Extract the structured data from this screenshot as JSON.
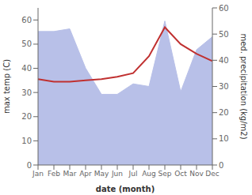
{
  "chart_data": {
    "type": "line",
    "categories": [
      "Jan",
      "Feb",
      "Mar",
      "Apr",
      "May",
      "Jun",
      "Jul",
      "Aug",
      "Sep",
      "Oct",
      "Nov",
      "Dec"
    ],
    "series": [
      {
        "type": "area",
        "axis": "y2",
        "color": "#b8c0e8",
        "values": [
          51,
          51,
          52,
          37,
          27,
          27,
          31,
          30,
          55,
          28,
          44,
          49
        ]
      },
      {
        "type": "line",
        "axis": "y",
        "color": "#c03030",
        "values": [
          35.5,
          34.5,
          34.5,
          35.0,
          35.5,
          36.5,
          38.0,
          45.0,
          57.0,
          50.0,
          46.0,
          43.0
        ]
      }
    ],
    "xlabel": "date (month)",
    "ylabel": "max temp (C)",
    "y2label": "med. precipitation (kg/m2)",
    "ylim": [
      0,
      65
    ],
    "yticks": [
      0,
      10,
      20,
      30,
      40,
      50,
      60
    ],
    "y2lim": [
      0,
      60
    ],
    "y2ticks": [
      0,
      10,
      20,
      30,
      40,
      50,
      60
    ],
    "grid": false
  }
}
